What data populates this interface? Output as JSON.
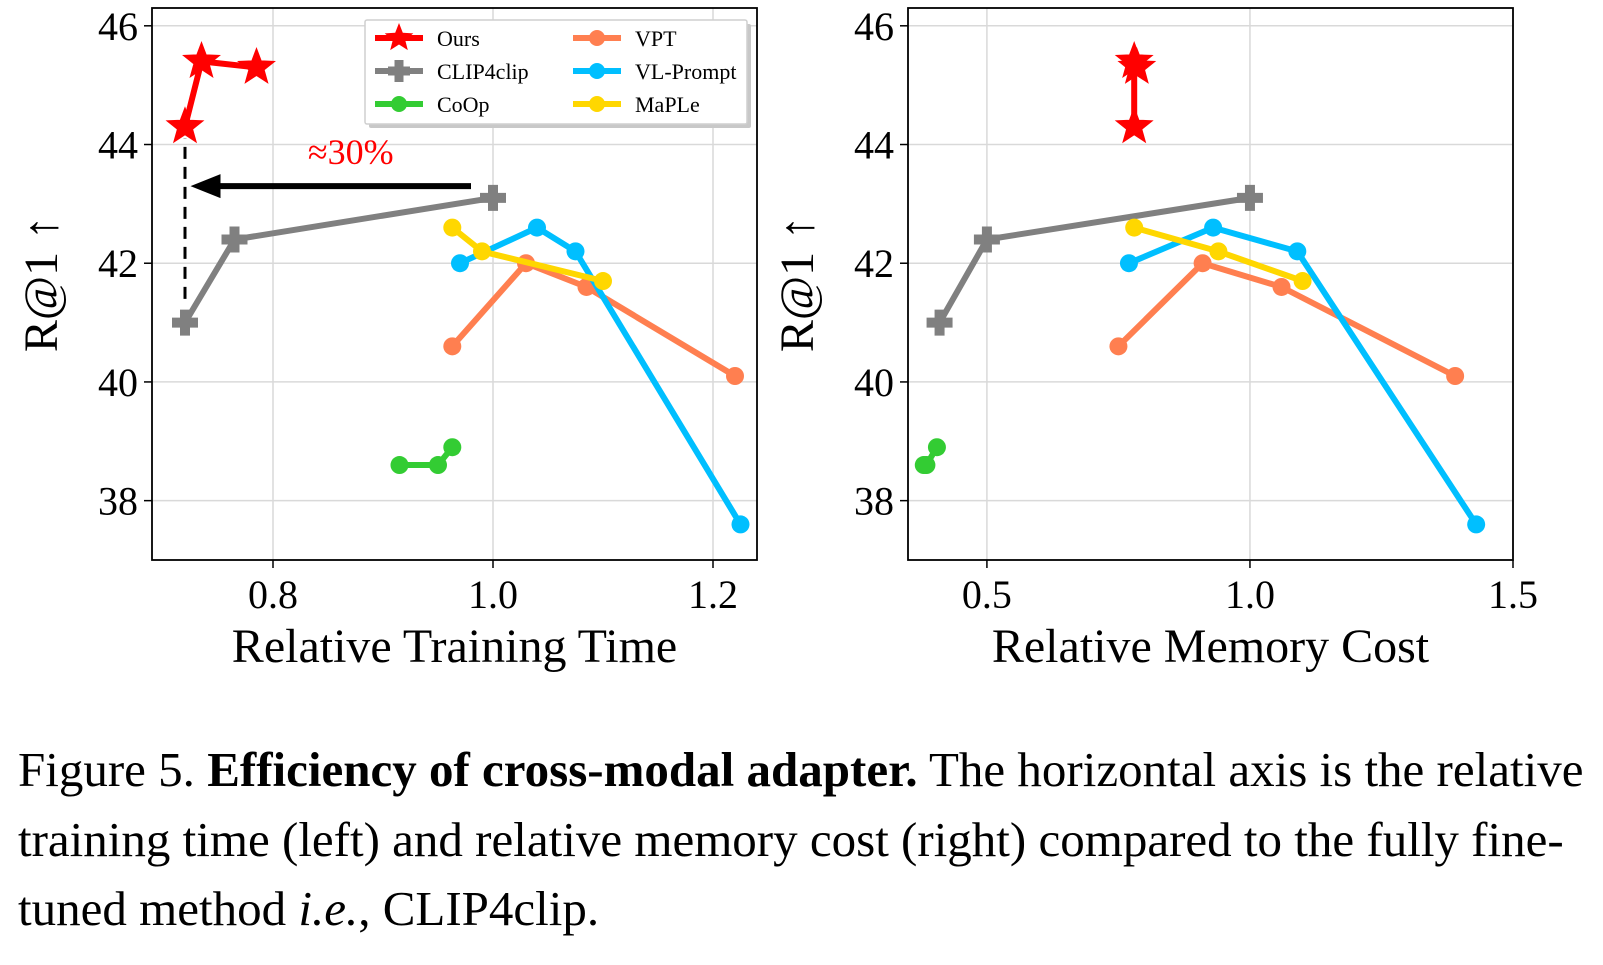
{
  "chart_data": [
    {
      "type": "line",
      "title": "",
      "xlabel": "Relative Training Time",
      "ylabel": "R@1 ↑",
      "xlim": [
        0.69,
        1.24
      ],
      "ylim": [
        37,
        46.3
      ],
      "xticks": [
        {
          "v": 0.8,
          "label": "0.8"
        },
        {
          "v": 1.0,
          "label": "1.0"
        },
        {
          "v": 1.2,
          "label": "1.2"
        }
      ],
      "yticks": [
        {
          "v": 38,
          "label": "38"
        },
        {
          "v": 40,
          "label": "40"
        },
        {
          "v": 42,
          "label": "42"
        },
        {
          "v": 44,
          "label": "44"
        },
        {
          "v": 46,
          "label": "46"
        }
      ],
      "grid": true,
      "series": [
        {
          "name": "Ours",
          "color": "#ff0000",
          "marker": "star",
          "points": [
            [
              0.72,
              44.3
            ],
            [
              0.735,
              45.4
            ],
            [
              0.785,
              45.3
            ]
          ]
        },
        {
          "name": "CLIP4clip",
          "color": "#808080",
          "marker": "plus",
          "points": [
            [
              0.72,
              41.0
            ],
            [
              0.765,
              42.4
            ],
            [
              1.0,
              43.1
            ]
          ]
        },
        {
          "name": "CoOp",
          "color": "#33cc33",
          "marker": "circle",
          "points": [
            [
              0.915,
              38.6
            ],
            [
              0.95,
              38.6
            ],
            [
              0.963,
              38.9
            ]
          ]
        },
        {
          "name": "VPT",
          "color": "#ff7f50",
          "marker": "circle",
          "points": [
            [
              0.963,
              40.6
            ],
            [
              1.03,
              42.0
            ],
            [
              1.085,
              41.6
            ],
            [
              1.22,
              40.1
            ]
          ]
        },
        {
          "name": "VL-Prompt",
          "color": "#00bfff",
          "marker": "circle",
          "points": [
            [
              0.97,
              42.0
            ],
            [
              1.04,
              42.6
            ],
            [
              1.075,
              42.2
            ],
            [
              1.225,
              37.6
            ]
          ]
        },
        {
          "name": "MaPLe",
          "color": "#ffd700",
          "marker": "circle",
          "points": [
            [
              0.963,
              42.6
            ],
            [
              0.99,
              42.2
            ],
            [
              1.1,
              41.7
            ]
          ]
        }
      ],
      "annotation": {
        "text": "≈30%",
        "color": "#ff0000",
        "arrow_from": [
          0.98,
          43.3
        ],
        "arrow_to": [
          0.725,
          43.3
        ],
        "dashed_x": 0.72,
        "dashed_y": [
          41.4,
          44.1
        ]
      },
      "legend": {
        "placement": "top-center",
        "columns": [
          [
            "Ours",
            "CLIP4clip",
            "CoOp"
          ],
          [
            "VPT",
            "VL-Prompt",
            "MaPLe"
          ]
        ]
      }
    },
    {
      "type": "line",
      "title": "",
      "xlabel": "Relative Memory Cost",
      "ylabel": "R@1 ↑",
      "xlim": [
        0.35,
        1.5
      ],
      "ylim": [
        37,
        46.3
      ],
      "xticks": [
        {
          "v": 0.5,
          "label": "0.5"
        },
        {
          "v": 1.0,
          "label": "1.0"
        },
        {
          "v": 1.5,
          "label": "1.5"
        }
      ],
      "yticks": [
        {
          "v": 38,
          "label": "38"
        },
        {
          "v": 40,
          "label": "40"
        },
        {
          "v": 42,
          "label": "42"
        },
        {
          "v": 44,
          "label": "44"
        },
        {
          "v": 46,
          "label": "46"
        }
      ],
      "grid": true,
      "series": [
        {
          "name": "Ours",
          "color": "#ff0000",
          "marker": "star",
          "points": [
            [
              0.78,
              44.3
            ],
            [
              0.78,
              45.4
            ],
            [
              0.785,
              45.3
            ]
          ]
        },
        {
          "name": "CLIP4clip",
          "color": "#808080",
          "marker": "plus",
          "points": [
            [
              0.41,
              41.0
            ],
            [
              0.5,
              42.4
            ],
            [
              1.0,
              43.1
            ]
          ]
        },
        {
          "name": "CoOp",
          "color": "#33cc33",
          "marker": "circle",
          "points": [
            [
              0.38,
              38.6
            ],
            [
              0.385,
              38.6
            ],
            [
              0.405,
              38.9
            ]
          ]
        },
        {
          "name": "VPT",
          "color": "#ff7f50",
          "marker": "circle",
          "points": [
            [
              0.75,
              40.6
            ],
            [
              0.91,
              42.0
            ],
            [
              1.06,
              41.6
            ],
            [
              1.39,
              40.1
            ]
          ]
        },
        {
          "name": "VL-Prompt",
          "color": "#00bfff",
          "marker": "circle",
          "points": [
            [
              0.77,
              42.0
            ],
            [
              0.93,
              42.6
            ],
            [
              1.09,
              42.2
            ],
            [
              1.43,
              37.6
            ]
          ]
        },
        {
          "name": "MaPLe",
          "color": "#ffd700",
          "marker": "circle",
          "points": [
            [
              0.78,
              42.6
            ],
            [
              0.94,
              42.2
            ],
            [
              1.1,
              41.7
            ]
          ]
        }
      ]
    }
  ],
  "caption": {
    "prefix": "Figure 5. ",
    "bold": "Efficiency of cross-modal adapter.",
    "text1": " The horizontal axis is the relative training time (left) and relative memory cost (right) compared to the fully fine-tuned method ",
    "italic": "i.e.",
    "text2": ", CLIP4clip."
  }
}
